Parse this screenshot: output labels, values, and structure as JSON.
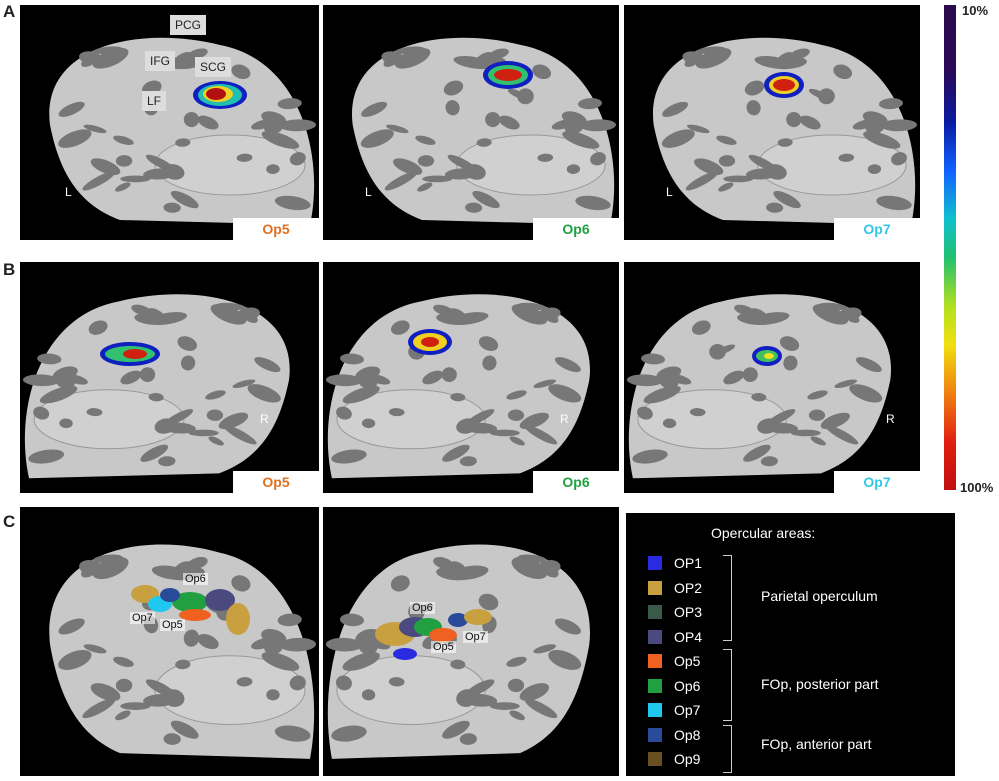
{
  "panel_labels": [
    "A",
    "B",
    "C"
  ],
  "row_a": {
    "side": "L",
    "gyri": [
      "PCG",
      "IFG",
      "SCG",
      "LF"
    ],
    "tags": [
      {
        "text": "Op5",
        "color": "#e07020"
      },
      {
        "text": "Op6",
        "color": "#20a040"
      },
      {
        "text": "Op7",
        "color": "#30c8e8"
      }
    ]
  },
  "row_b": {
    "side": "R",
    "tags": [
      {
        "text": "Op5",
        "color": "#e07020"
      },
      {
        "text": "Op6",
        "color": "#20a040"
      },
      {
        "text": "Op7",
        "color": "#30c8e8"
      }
    ]
  },
  "row_c": {
    "left_labels": [
      "Op6",
      "Op7",
      "Op5"
    ],
    "right_labels": [
      "Op6",
      "Op7",
      "Op5"
    ]
  },
  "colorbar": {
    "top": "10%",
    "bottom": "100%"
  },
  "legend": {
    "title": "Opercular areas:",
    "items": [
      {
        "label": "OP1",
        "color": "#2a2ae0"
      },
      {
        "label": "OP2",
        "color": "#c8a040"
      },
      {
        "label": "OP3",
        "color": "#3a5a48"
      },
      {
        "label": "OP4",
        "color": "#4a4a80"
      },
      {
        "label": "Op5",
        "color": "#f06020"
      },
      {
        "label": "Op6",
        "color": "#20a040"
      },
      {
        "label": "Op7",
        "color": "#20c8f0"
      },
      {
        "label": "Op8",
        "color": "#2a4a9a"
      },
      {
        "label": "Op9",
        "color": "#6a5020"
      }
    ],
    "groups": [
      "Parietal operculum",
      "FOp, posterior part",
      "FOp, anterior part"
    ]
  }
}
